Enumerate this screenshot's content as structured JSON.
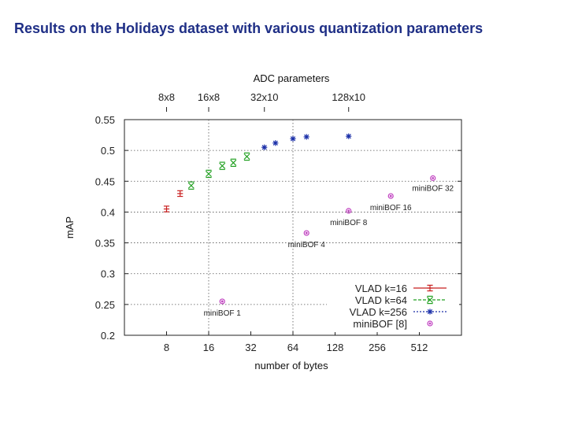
{
  "slide": {
    "title": "Results on the Holidays dataset with various quantization parameters"
  },
  "chart_data": {
    "type": "scatter",
    "title": "ADC parameters",
    "xlabel": "number of bytes",
    "ylabel": "mAP",
    "x_scale": "log2",
    "xlim": [
      4,
      1024
    ],
    "ylim": [
      0.2,
      0.55
    ],
    "x_ticks": [
      8,
      16,
      32,
      64,
      128,
      256,
      512
    ],
    "y_ticks": [
      0.2,
      0.25,
      0.3,
      0.35,
      0.4,
      0.45,
      0.5,
      0.55
    ],
    "y_tick_labels": [
      "0.2",
      "0.25",
      "0.3",
      "0.35",
      "0.4",
      "0.45",
      "0.5",
      "0.55"
    ],
    "top_axis": {
      "ticks": [
        {
          "label": "8x8",
          "x": 8
        },
        {
          "label": "16x8",
          "x": 16
        },
        {
          "label": "32x10",
          "x": 40
        },
        {
          "label": "128x10",
          "x": 160
        }
      ]
    },
    "vertical_gridlines": [
      16,
      64
    ],
    "legend": {
      "position": "bottom-right"
    },
    "series": [
      {
        "name": "VLAD k=16",
        "color": "#c81e1e",
        "marker": "plus",
        "points": [
          [
            8,
            0.405
          ],
          [
            10,
            0.43
          ]
        ]
      },
      {
        "name": "VLAD k=64",
        "color": "#22a022",
        "marker": "cross",
        "points": [
          [
            12,
            0.443
          ],
          [
            16,
            0.462
          ],
          [
            20,
            0.475
          ],
          [
            24,
            0.48
          ],
          [
            30,
            0.49
          ]
        ]
      },
      {
        "name": "VLAD k=256",
        "color": "#1a2fa8",
        "marker": "star",
        "points": [
          [
            40,
            0.505
          ],
          [
            48,
            0.512
          ],
          [
            64,
            0.519
          ],
          [
            80,
            0.522
          ],
          [
            160,
            0.523
          ]
        ]
      },
      {
        "name": "miniBOF [8]",
        "color": "#c040c0",
        "marker": "circle",
        "points": [
          [
            20,
            0.255
          ],
          [
            80,
            0.366
          ],
          [
            160,
            0.402
          ],
          [
            320,
            0.426
          ],
          [
            640,
            0.455
          ]
        ],
        "labels": [
          "miniBOF 1",
          "miniBOF 4",
          "miniBOF 8",
          "miniBOF 16",
          "miniBOF 32"
        ]
      }
    ]
  }
}
